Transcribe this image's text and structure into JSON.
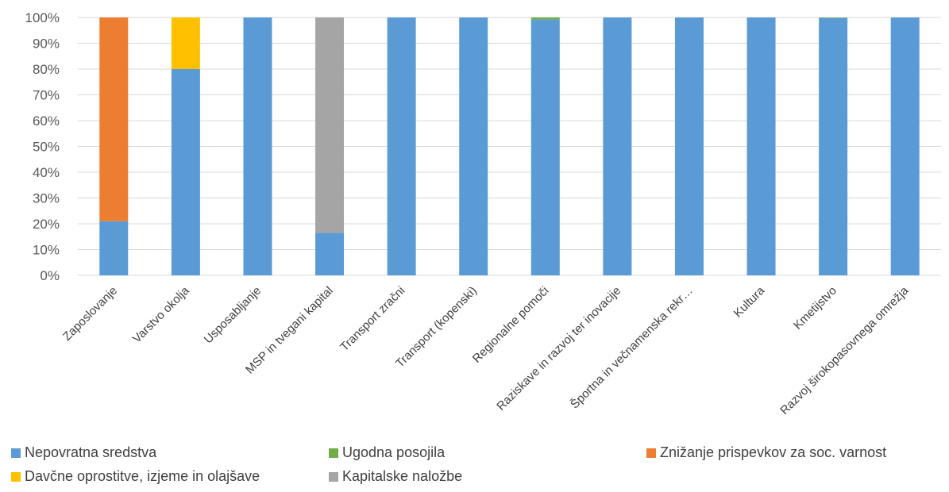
{
  "chart_data": {
    "type": "bar",
    "stacked": true,
    "percent": true,
    "ylim": [
      0,
      100
    ],
    "yticks": [
      "0%",
      "10%",
      "20%",
      "30%",
      "40%",
      "50%",
      "60%",
      "70%",
      "80%",
      "90%",
      "100%"
    ],
    "grid": true,
    "legend_position": "bottom",
    "categories": [
      "Zaposlovanje",
      "Varstvo okolja",
      "Usposabljanje",
      "MSP in tvegani kapital",
      "Transport zračni",
      "Transport (kopenski)",
      "Regionalne pomoči",
      "Raziskave in razvoj ter inovacije",
      "Športna in večnamenska rekr…",
      "Kultura",
      "Kmetijstvo",
      "Razvoj širokopasovnega omrežja"
    ],
    "series": [
      {
        "name": "Nepovratna sredstva",
        "color": "#5B9BD5",
        "values": [
          21,
          80,
          100,
          16.5,
          100,
          100,
          99.2,
          100,
          100,
          100,
          99.8,
          100
        ]
      },
      {
        "name": "Ugodna posojila",
        "color": "#70AD47",
        "values": [
          0,
          0,
          0,
          0,
          0,
          0,
          0.8,
          0,
          0,
          0,
          0.2,
          0
        ]
      },
      {
        "name": "Znižanje prispevkov za soc. varnost",
        "color": "#ED7D31",
        "values": [
          79,
          0,
          0,
          0,
          0,
          0,
          0,
          0,
          0,
          0,
          0,
          0
        ]
      },
      {
        "name": "Davčne oprostitve, izjeme in olajšave",
        "color": "#FFC000",
        "values": [
          0,
          20,
          0,
          0,
          0,
          0,
          0,
          0,
          0,
          0,
          0,
          0
        ]
      },
      {
        "name": "Kapitalske naložbe",
        "color": "#A5A5A5",
        "values": [
          0,
          0,
          0,
          83.5,
          0,
          0,
          0,
          0,
          0,
          0,
          0,
          0
        ]
      }
    ]
  },
  "legend": {
    "items": [
      {
        "label": "Nepovratna sredstva",
        "color": "#5B9BD5"
      },
      {
        "label": "Ugodna posojila",
        "color": "#70AD47"
      },
      {
        "label": "Znižanje prispevkov za soc. varnost",
        "color": "#ED7D31"
      },
      {
        "label": "Davčne oprostitve, izjeme in olajšave",
        "color": "#FFC000"
      },
      {
        "label": "Kapitalske naložbe",
        "color": "#A5A5A5"
      }
    ]
  }
}
